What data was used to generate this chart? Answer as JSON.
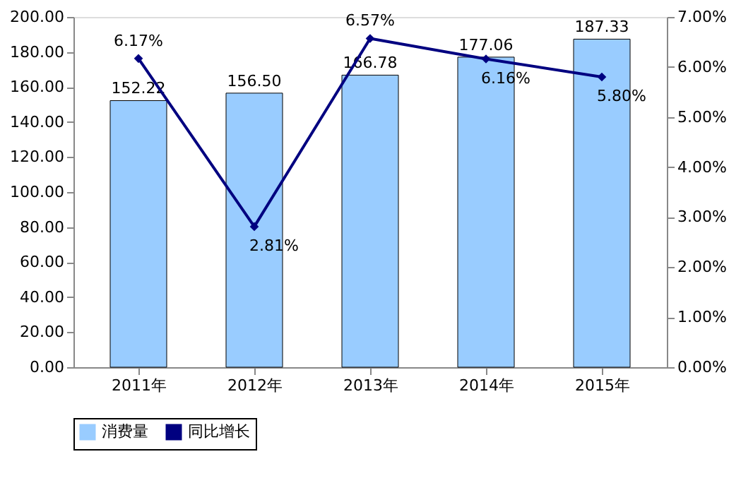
{
  "chart_data": {
    "type": "bar",
    "categories": [
      "2011年",
      "2012年",
      "2013年",
      "2014年",
      "2015年"
    ],
    "series": [
      {
        "name": "消费量",
        "color": "#99ccff",
        "values": [
          152.22,
          156.5,
          166.78,
          177.06,
          187.33
        ],
        "value_labels": [
          "152.22",
          "156.50",
          "166.78",
          "177.06",
          "187.33"
        ]
      },
      {
        "name": "同比增长",
        "type": "line",
        "axis": "y2",
        "color": "#000080",
        "marker": "diamond",
        "values": [
          6.17,
          2.81,
          6.57,
          6.16,
          5.8
        ],
        "value_labels": [
          "6.17%",
          "2.81%",
          "6.57%",
          "6.16%",
          "5.80%"
        ]
      }
    ],
    "ylim": [
      0,
      200
    ],
    "yticks": [
      {
        "value": 0,
        "label": "0.00"
      },
      {
        "value": 20,
        "label": "20.00"
      },
      {
        "value": 40,
        "label": "40.00"
      },
      {
        "value": 60,
        "label": "60.00"
      },
      {
        "value": 80,
        "label": "80.00"
      },
      {
        "value": 100,
        "label": "100.00"
      },
      {
        "value": 120,
        "label": "120.00"
      },
      {
        "value": 140,
        "label": "140.00"
      },
      {
        "value": 160,
        "label": "160.00"
      },
      {
        "value": 180,
        "label": "180.00"
      },
      {
        "value": 200,
        "label": "200.00"
      }
    ],
    "y2lim": [
      0,
      7
    ],
    "y2ticks": [
      {
        "value": 0,
        "label": "0.00%"
      },
      {
        "value": 1,
        "label": "1.00%"
      },
      {
        "value": 2,
        "label": "2.00%"
      },
      {
        "value": 3,
        "label": "3.00%"
      },
      {
        "value": 4,
        "label": "4.00%"
      },
      {
        "value": 5,
        "label": "5.00%"
      },
      {
        "value": 6,
        "label": "6.00%"
      },
      {
        "value": 7,
        "label": "7.00%"
      }
    ],
    "grid": false,
    "legend": "bottom"
  }
}
